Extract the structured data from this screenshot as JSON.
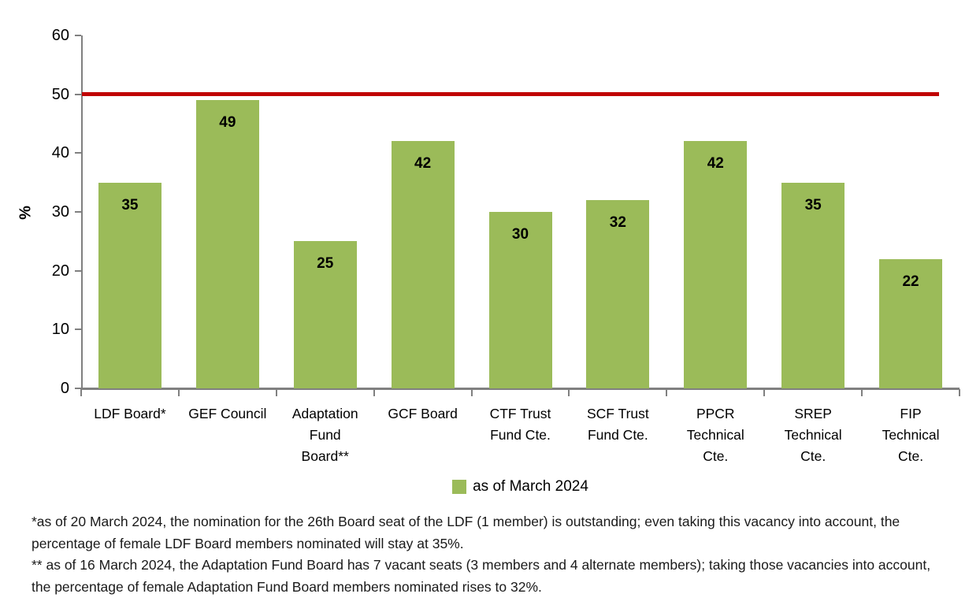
{
  "chart_data": {
    "type": "bar",
    "title": "",
    "xlabel": "",
    "ylabel": "%",
    "ylim": [
      0,
      60
    ],
    "yticks": [
      0,
      10,
      20,
      30,
      40,
      50,
      60
    ],
    "categories": [
      "LDF Board*",
      "GEF Council",
      "Adaptation\nFund\nBoard**",
      "GCF Board",
      "CTF Trust\nFund Cte.",
      "SCF Trust\nFund Cte.",
      "PPCR\nTechnical\nCte.",
      "SREP\nTechnical\nCte.",
      "FIP\nTechnical\nCte."
    ],
    "series": [
      {
        "name": "as of March 2024",
        "values": [
          35,
          49,
          25,
          42,
          30,
          32,
          42,
          35,
          22
        ]
      }
    ],
    "reference_line": {
      "value": 50,
      "color": "#c00000"
    },
    "bar_color": "#9bbb59",
    "grid": false,
    "legend_position": "bottom",
    "data_labels": true
  },
  "legend": {
    "label": "as of March 2024"
  },
  "footnotes": [
    "*as of 20 March 2024, the nomination for the 26th Board seat of the LDF (1 member) is outstanding; even taking this vacancy into account, the percentage of female LDF Board members nominated will stay at 35%.",
    "** as of 16 March 2024, the Adaptation Fund Board has 7 vacant seats (3 members and 4 alternate members); taking those vacancies into account, the percentage of female Adaptation Fund Board members nominated rises to 32%."
  ],
  "colors": {
    "bar": "#9bbb59",
    "reference_line": "#c00000",
    "axis": "#808080",
    "bar_label": "#000000",
    "footnote_text": "#1a1a1a"
  }
}
